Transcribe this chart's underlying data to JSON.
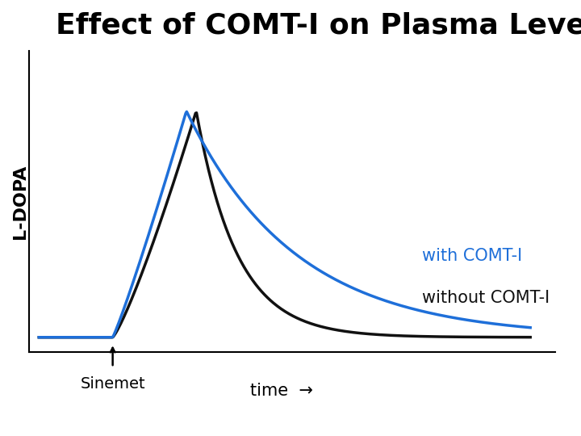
{
  "title": "Effect of COMT-I on Plasma Levels",
  "ylabel": "L-DOPA",
  "xlabel_text": "time",
  "sinemet_label": "Sinemet",
  "with_label": "with COMT-I",
  "without_label": "without COMT-I",
  "color_with": "#1e6fd9",
  "color_without": "#111111",
  "title_fontsize": 26,
  "label_fontsize": 16,
  "annot_fontsize": 15,
  "background_color": "#ffffff"
}
